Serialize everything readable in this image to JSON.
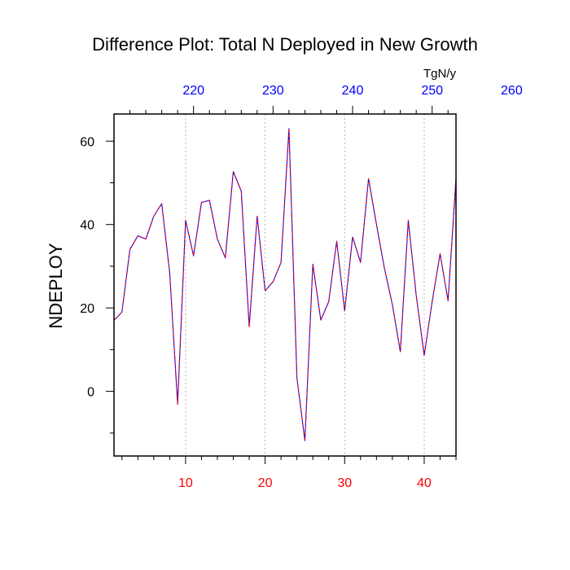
{
  "chart_data": {
    "type": "line",
    "title": "Difference Plot: Total N Deployed in New Growth",
    "ylabel": "NDEPLOY",
    "top_axis_unit": "TgN/y",
    "xlim": [
      1,
      44
    ],
    "ylim": [
      -15.5,
      66.5
    ],
    "x_ticks": [
      10,
      20,
      30,
      40
    ],
    "x_tick_labels": [
      "10",
      "20",
      "30",
      "40"
    ],
    "y_ticks": [
      0,
      20,
      40,
      60
    ],
    "y_tick_labels": [
      "0",
      "20",
      "40",
      "60"
    ],
    "top_ticks": [
      220,
      230,
      240,
      250,
      260
    ],
    "top_tick_labels": [
      "220",
      "230",
      "240",
      "250",
      "260"
    ],
    "top_axis_offset": 209,
    "x_grid": "dotted vertical lines at x tick positions",
    "series": [
      {
        "x": [
          1,
          2,
          3,
          4,
          5,
          6,
          7,
          8,
          9,
          10,
          11,
          12,
          13,
          14,
          15,
          16,
          17,
          18,
          19,
          20,
          21,
          22,
          23,
          24,
          25,
          26,
          27,
          28,
          29,
          30,
          31,
          32,
          33,
          34,
          35,
          36,
          37,
          38,
          39,
          40,
          41,
          42,
          43,
          44
        ],
        "values": [
          17,
          19,
          34,
          37.3,
          36.5,
          42,
          45,
          28.5,
          -3.1,
          41,
          32.5,
          45.3,
          45.8,
          36.5,
          32,
          52.7,
          48,
          15.5,
          42,
          24.1,
          26.3,
          30.9,
          63,
          3.2,
          -11.8,
          30.5,
          17.1,
          21.5,
          36,
          19.3,
          37,
          30.9,
          51,
          40,
          29.5,
          20.8,
          9.5,
          41,
          23,
          8.6,
          21.5,
          33,
          21.7,
          51
        ]
      }
    ],
    "colors": {
      "line_primary": "#0000ff",
      "line_dash": "#ff0000",
      "bottom_tick_labels": "#ff0000",
      "top_tick_labels": "#0000ff",
      "grid": "#b4b4b4"
    }
  }
}
